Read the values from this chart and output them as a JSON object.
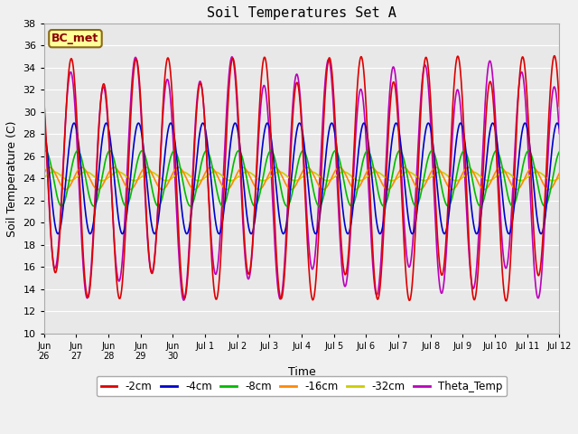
{
  "title": "Soil Temperatures Set A",
  "xlabel": "Time",
  "ylabel": "Soil Temperature (C)",
  "ylim": [
    10,
    38
  ],
  "yticks": [
    10,
    12,
    14,
    16,
    18,
    20,
    22,
    24,
    26,
    28,
    30,
    32,
    34,
    36,
    38
  ],
  "annotation_text": "BC_met",
  "annotation_color": "#8B0000",
  "annotation_bg": "#FFFF99",
  "annotation_border": "#8B6914",
  "series": {
    "-2cm": {
      "color": "#DD0000",
      "lw": 1.2
    },
    "-4cm": {
      "color": "#0000CC",
      "lw": 1.2
    },
    "-8cm": {
      "color": "#00BB00",
      "lw": 1.2
    },
    "-16cm": {
      "color": "#FF8800",
      "lw": 1.2
    },
    "-32cm": {
      "color": "#CCCC00",
      "lw": 1.2
    },
    "Theta_Temp": {
      "color": "#BB00BB",
      "lw": 1.2
    }
  },
  "legend_order": [
    "-2cm",
    "-4cm",
    "-8cm",
    "-16cm",
    "-32cm",
    "Theta_Temp"
  ],
  "bg_color": "#E8E8E8",
  "grid_color": "#FFFFFF",
  "fig_bg": "#F0F0F0"
}
